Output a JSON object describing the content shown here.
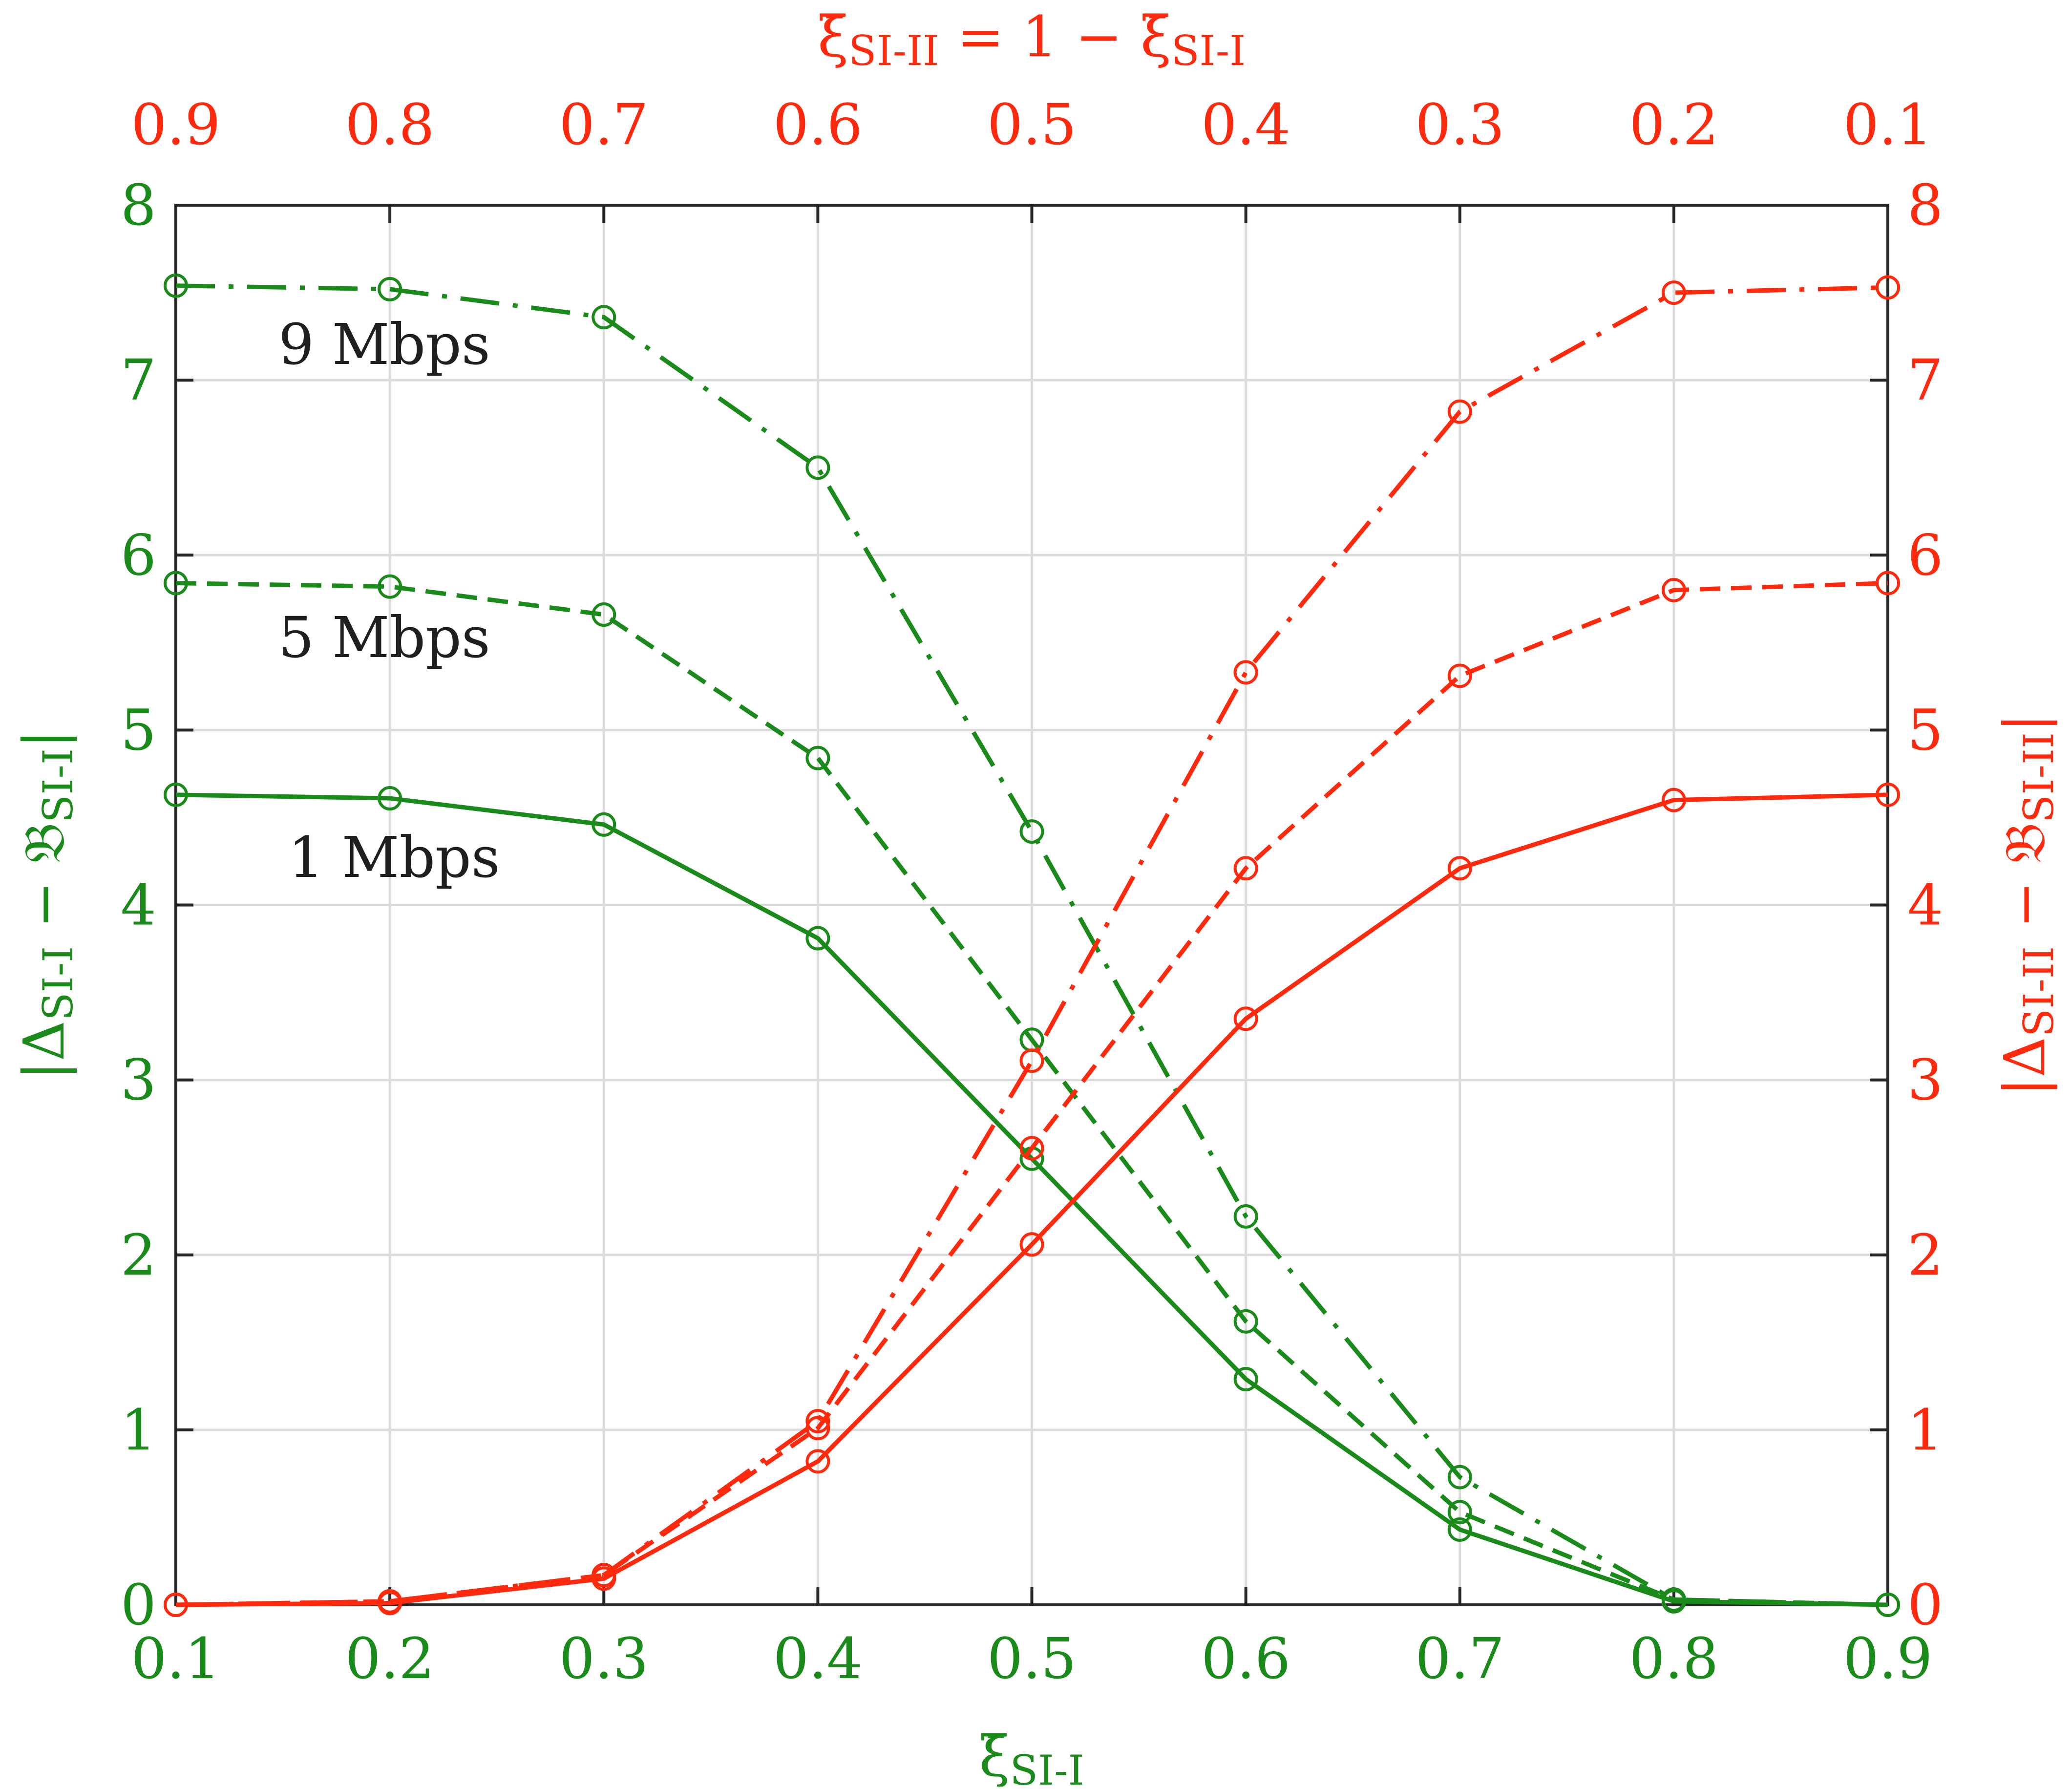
{
  "colors": {
    "left_series": "#1a8a1a",
    "right_series": "#ff2a0d",
    "grid": "#dcdcdc",
    "axes_box": "#262626",
    "label_text": "#1f1f1f"
  },
  "chart_data": {
    "type": "line",
    "grid": true,
    "x": [
      0.1,
      0.2,
      0.3,
      0.4,
      0.5,
      0.6,
      0.7,
      0.8,
      0.9
    ],
    "xlim": [
      0.1,
      0.9
    ],
    "ylim": [
      0,
      8
    ],
    "x_ticks": [
      "0.1",
      "0.2",
      "0.3",
      "0.4",
      "0.5",
      "0.6",
      "0.7",
      "0.8",
      "0.9"
    ],
    "top_x_ticks": [
      "0.9",
      "0.8",
      "0.7",
      "0.6",
      "0.5",
      "0.4",
      "0.3",
      "0.2",
      "0.1"
    ],
    "y_ticks": [
      "0",
      "1",
      "2",
      "3",
      "4",
      "5",
      "6",
      "7",
      "8"
    ],
    "xlabel": {
      "main": "ξ̄",
      "sub": "SI-I"
    },
    "top_xlabel": {
      "main1": "ξ̄",
      "sub1": "SI-II",
      "mid": " = 1 − ",
      "main2": "ξ̄",
      "sub2": "SI-I"
    },
    "ylabel_left": {
      "main1": "|Δ",
      "sub1": "SI-I",
      "mid": " − 𝔅",
      "sub2": "SI-I",
      "end": "|"
    },
    "ylabel_right": {
      "main1": "|Δ",
      "sub1": "SI-II",
      "mid": " − 𝔅",
      "sub2": "SI-II",
      "end": "|"
    },
    "annotations": [
      "9 Mbps",
      "5 Mbps",
      "1 Mbps"
    ],
    "series": [
      {
        "axis": "left",
        "rate": "9 Mbps",
        "style": "dashdot",
        "values": [
          7.54,
          7.52,
          7.36,
          6.5,
          4.42,
          2.22,
          0.73,
          0.03,
          0.0
        ]
      },
      {
        "axis": "left",
        "rate": "5 Mbps",
        "style": "dashed",
        "values": [
          5.84,
          5.82,
          5.66,
          4.84,
          3.23,
          1.62,
          0.53,
          0.03,
          0.0
        ]
      },
      {
        "axis": "left",
        "rate": "1 Mbps",
        "style": "solid",
        "values": [
          4.63,
          4.61,
          4.46,
          3.81,
          2.55,
          1.29,
          0.43,
          0.02,
          0.0
        ]
      },
      {
        "axis": "right",
        "rate": "9 Mbps",
        "style": "dashdot",
        "values": [
          0.0,
          0.02,
          0.17,
          1.05,
          3.11,
          5.33,
          6.82,
          7.5,
          7.53
        ]
      },
      {
        "axis": "right",
        "rate": "5 Mbps",
        "style": "dashed",
        "values": [
          0.0,
          0.02,
          0.17,
          1.01,
          2.61,
          4.21,
          5.31,
          5.8,
          5.84
        ]
      },
      {
        "axis": "right",
        "rate": "1 Mbps",
        "style": "solid",
        "values": [
          0.0,
          0.01,
          0.15,
          0.82,
          2.06,
          3.35,
          4.21,
          4.6,
          4.63
        ]
      }
    ]
  }
}
